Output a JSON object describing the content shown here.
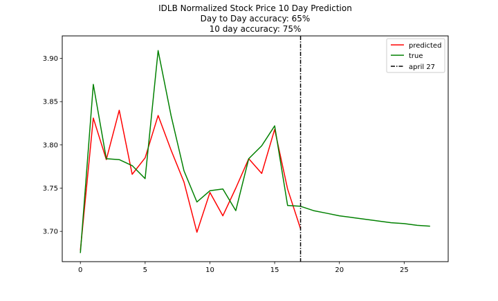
{
  "chart_data": {
    "type": "line",
    "title_lines": [
      "IDLB Normalized Stock Price 10 Day Prediction",
      "Day to Day accuracy: 65%",
      "10 day accuracy: 75%"
    ],
    "xlabel": "",
    "ylabel": "",
    "xlim": [
      -1.4,
      28.4
    ],
    "ylim": [
      3.665,
      3.926
    ],
    "x_ticks": [
      0,
      5,
      10,
      15,
      20,
      25
    ],
    "y_ticks": [
      3.7,
      3.75,
      3.8,
      3.85,
      3.9
    ],
    "y_tick_labels": [
      "3.70",
      "3.75",
      "3.80",
      "3.85",
      "3.90"
    ],
    "grid": false,
    "legend_position": "top-right",
    "series": [
      {
        "name": "predicted",
        "color": "#ff0000",
        "x": [
          0,
          1,
          2,
          3,
          4,
          5,
          6,
          7,
          8,
          9,
          10,
          11,
          12,
          13,
          14,
          15,
          16,
          17
        ],
        "y": [
          3.678,
          3.831,
          3.783,
          3.84,
          3.766,
          3.785,
          3.834,
          3.794,
          3.757,
          3.699,
          3.745,
          3.718,
          3.75,
          3.784,
          3.767,
          3.818,
          3.749,
          3.703
        ]
      },
      {
        "name": "true",
        "color": "#008000",
        "x": [
          0,
          1,
          2,
          3,
          4,
          5,
          6,
          7,
          8,
          9,
          10,
          11,
          12,
          13,
          14,
          15,
          16,
          17,
          18,
          19,
          20,
          21,
          22,
          23,
          24,
          25,
          26,
          27
        ],
        "y": [
          3.675,
          3.87,
          3.784,
          3.783,
          3.776,
          3.761,
          3.909,
          3.834,
          3.77,
          3.734,
          3.747,
          3.749,
          3.724,
          3.784,
          3.799,
          3.822,
          3.73,
          3.729,
          3.724,
          3.721,
          3.718,
          3.716,
          3.714,
          3.712,
          3.71,
          3.709,
          3.707,
          3.706
        ]
      }
    ],
    "vline": {
      "name": "april 27",
      "x": 17,
      "color": "#000000",
      "style": "dash-dot"
    }
  }
}
